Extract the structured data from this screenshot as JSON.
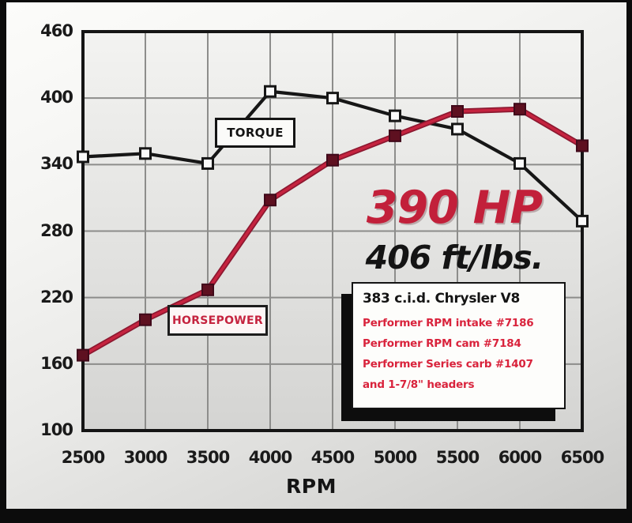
{
  "colors": {
    "torque_line": "#161616",
    "torque_marker_fill": "#fafafa",
    "hp_line": "#c5233f",
    "hp_line_outline": "#8c1830",
    "hp_marker_fill": "#5e1020",
    "hp_marker_stroke": "#40091a",
    "grid": "#8d8d8b",
    "frame": "#151515",
    "callout_red": "#c2203a",
    "spec_red": "#d9233c"
  },
  "chart_data": {
    "type": "line",
    "x": [
      2500,
      3000,
      3500,
      4000,
      4500,
      5000,
      5500,
      6000,
      6500
    ],
    "series": [
      {
        "name": "TORQUE",
        "values": [
          347,
          350,
          341,
          406,
          400,
          384,
          372,
          341,
          289
        ]
      },
      {
        "name": "HORSEPOWER",
        "values": [
          168,
          200,
          227,
          308,
          344,
          366,
          388,
          390,
          357
        ]
      }
    ],
    "xlabel": "RPM",
    "ylim": [
      100,
      460
    ],
    "yticks": [
      100,
      160,
      220,
      280,
      340,
      400,
      460
    ],
    "xticks": [
      2500,
      3000,
      3500,
      4000,
      4500,
      5000,
      5500,
      6000,
      6500
    ],
    "grid": "on",
    "legend_position": "inline-boxed-labels",
    "series_labels": {
      "torque": "TORQUE",
      "horsepower": "HORSEPOWER"
    },
    "callouts": {
      "hp_peak": "390 HP",
      "torque_peak": "406 ft/lbs."
    },
    "spec_box": {
      "title": "383 c.i.d. Chrysler V8",
      "lines": [
        "Performer RPM intake #7186",
        "Performer RPM cam #7184",
        "Performer Series carb #1407",
        "and 1-7/8\" headers"
      ]
    }
  }
}
